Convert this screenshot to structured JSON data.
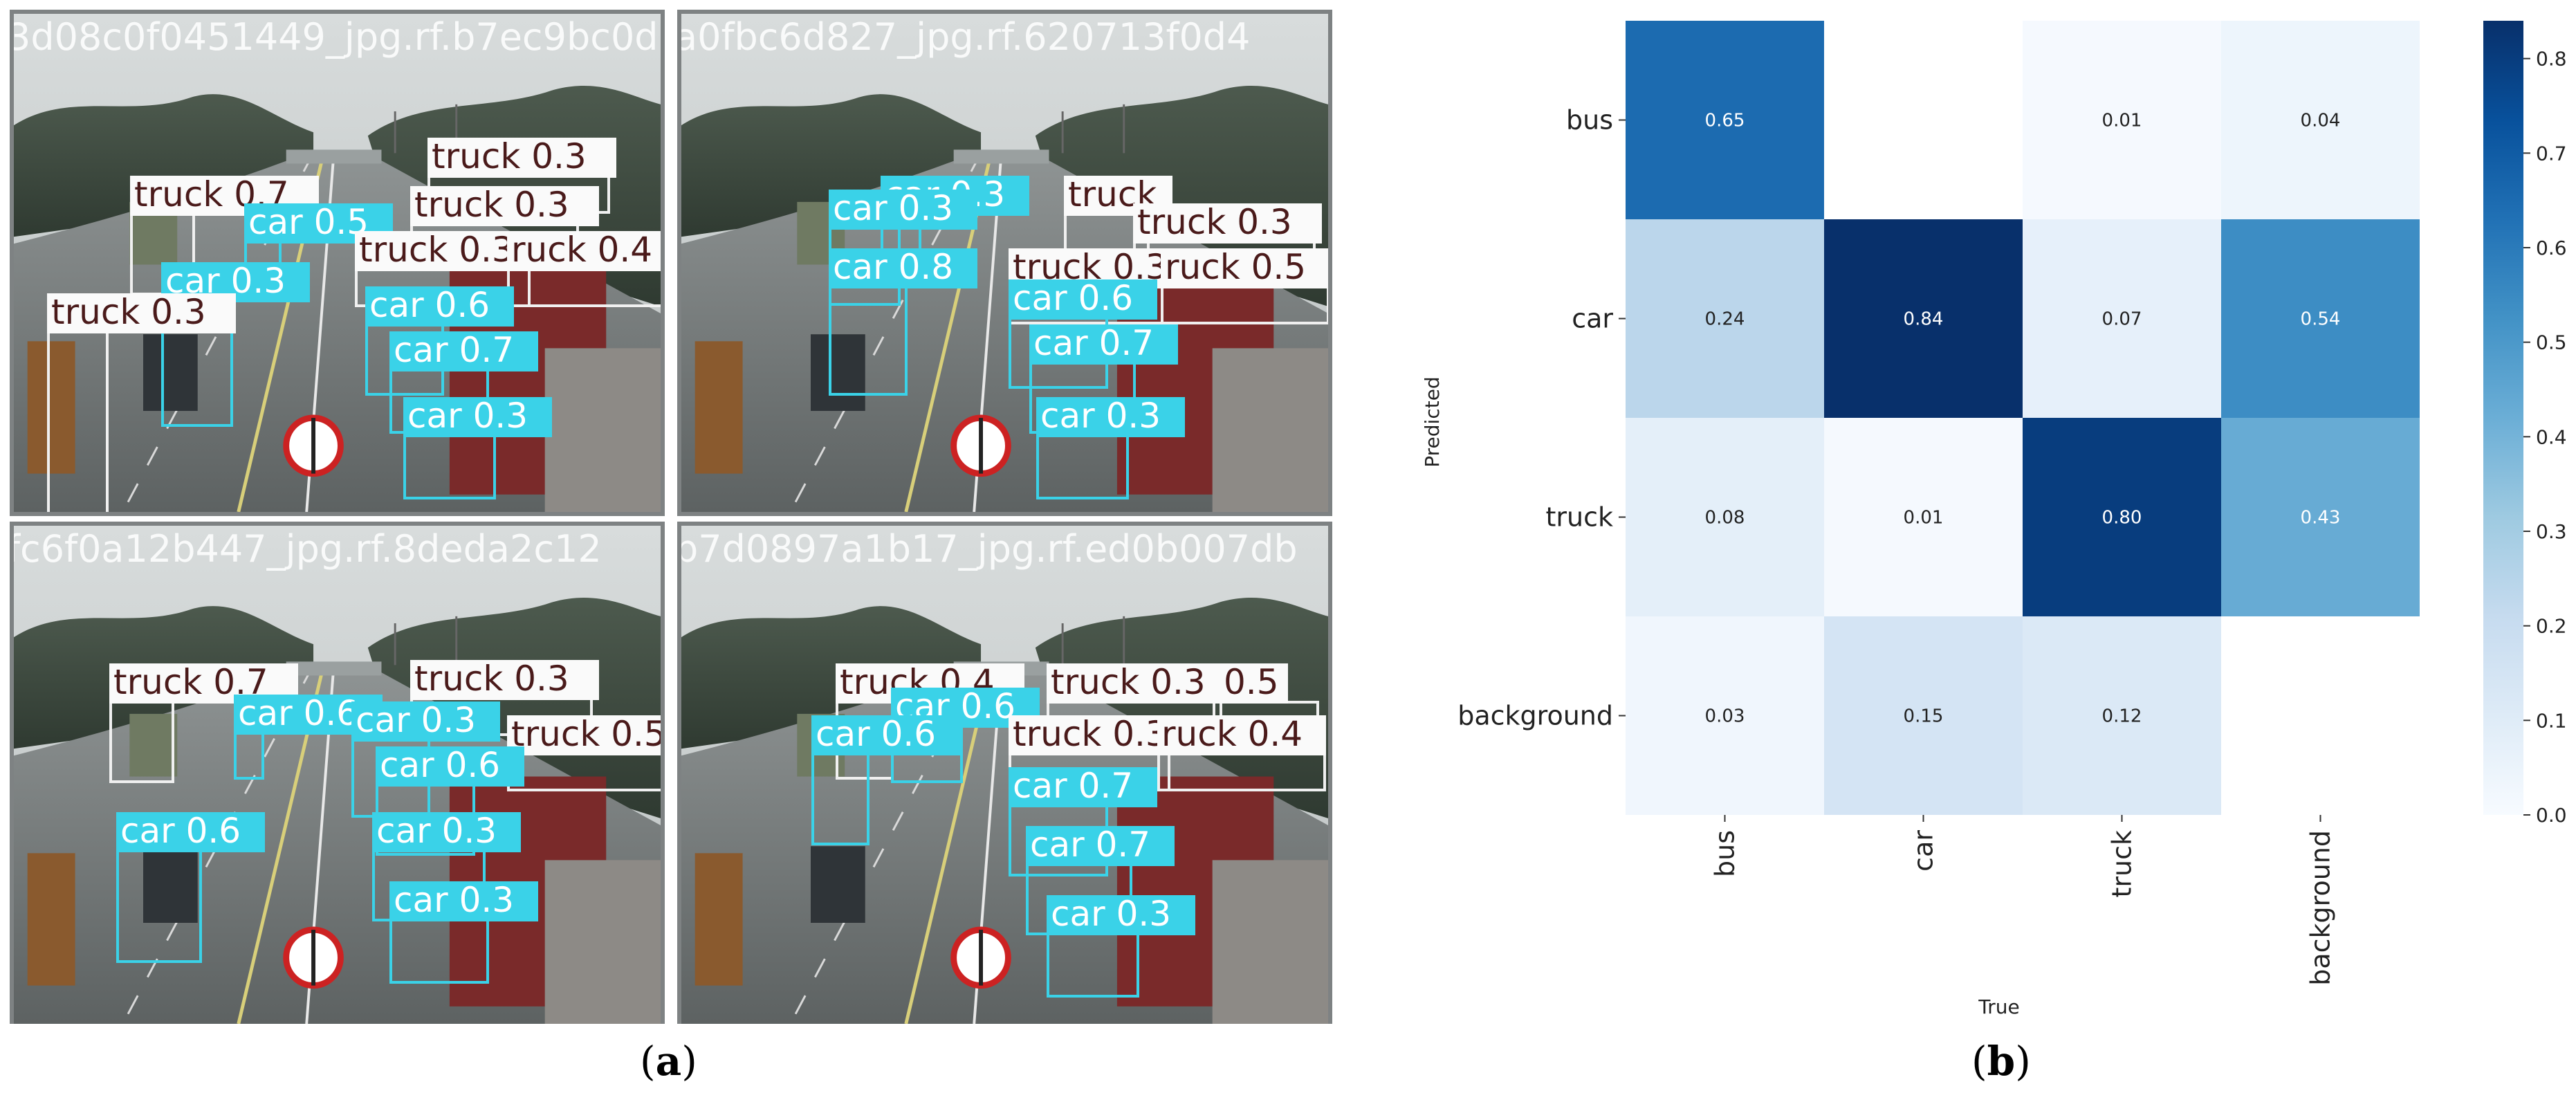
{
  "panel_a": {
    "label": "a",
    "images": [
      {
        "title": "3d08c0f0451449_jpg.rf.b7ec9bc0d",
        "detections": [
          {
            "label": "truck 0.7",
            "cls": "truck"
          },
          {
            "label": "car 0.5",
            "cls": "car"
          },
          {
            "label": "truck 0.3",
            "cls": "truck"
          },
          {
            "label": "truck 0.3",
            "cls": "truck"
          },
          {
            "label": "truck 0.3",
            "cls": "truck"
          },
          {
            "label": "ruck 0.4",
            "cls": "truck"
          },
          {
            "label": "car 0.3",
            "cls": "car"
          },
          {
            "label": "truck 0.3",
            "cls": "truck"
          },
          {
            "label": "car 0.6",
            "cls": "car"
          },
          {
            "label": "car 0.7",
            "cls": "car"
          },
          {
            "label": "car 0.3",
            "cls": "car"
          }
        ]
      },
      {
        "title": "a0fbc6d827_jpg.rf.620713f0d4",
        "detections": [
          {
            "label": "car 0.3",
            "cls": "car"
          },
          {
            "label": "car 0.3",
            "cls": "car"
          },
          {
            "label": "truck",
            "cls": "truck"
          },
          {
            "label": "truck 0.3",
            "cls": "truck"
          },
          {
            "label": "car 0.8",
            "cls": "car"
          },
          {
            "label": "truck 0.3",
            "cls": "truck"
          },
          {
            "label": "ruck 0.5",
            "cls": "truck"
          },
          {
            "label": "car 0.6",
            "cls": "car"
          },
          {
            "label": "car 0.7",
            "cls": "car"
          },
          {
            "label": "car 0.3",
            "cls": "car"
          }
        ]
      },
      {
        "title": "fc6f0a12b447_jpg.rf.8deda2c12",
        "detections": [
          {
            "label": "truck 0.7",
            "cls": "truck"
          },
          {
            "label": "car 0.6",
            "cls": "car"
          },
          {
            "label": "truck 0.3",
            "cls": "truck"
          },
          {
            "label": "car 0.3",
            "cls": "car"
          },
          {
            "label": "truck 0.5",
            "cls": "truck"
          },
          {
            "label": "car 0.6",
            "cls": "car"
          },
          {
            "label": "car 0.6",
            "cls": "car"
          },
          {
            "label": "car 0.3",
            "cls": "car"
          },
          {
            "label": "car 0.3",
            "cls": "car"
          }
        ]
      },
      {
        "title": "b7d0897a1b17_jpg.rf.ed0b007db",
        "detections": [
          {
            "label": "truck 0.4",
            "cls": "truck"
          },
          {
            "label": "car 0.6",
            "cls": "car"
          },
          {
            "label": "car 0.6",
            "cls": "car"
          },
          {
            "label": "truck 0.3",
            "cls": "truck"
          },
          {
            "label": "0.5",
            "cls": "truck"
          },
          {
            "label": "truck 0.3",
            "cls": "truck"
          },
          {
            "label": "ruck 0.4",
            "cls": "truck"
          },
          {
            "label": "car 0.7",
            "cls": "car"
          },
          {
            "label": "car 0.7",
            "cls": "car"
          },
          {
            "label": "car 0.3",
            "cls": "car"
          }
        ]
      }
    ]
  },
  "panel_b": {
    "label": "b"
  },
  "colors": {
    "car_box": "#3ad2e8",
    "truck_label_bg": "#fafafa",
    "truck_text": "#4a1a1a",
    "car_text": "#ffffff",
    "colormap_low": "#f7fbff",
    "colormap_high": "#08306b"
  },
  "chart_data": {
    "type": "heatmap",
    "title": "",
    "xlabel": "True",
    "ylabel": "Predicted",
    "x_categories": [
      "bus",
      "car",
      "truck",
      "background"
    ],
    "y_categories": [
      "bus",
      "car",
      "truck",
      "background"
    ],
    "values": [
      [
        0.65,
        null,
        0.01,
        0.04
      ],
      [
        0.24,
        0.84,
        0.07,
        0.54
      ],
      [
        0.08,
        0.01,
        0.8,
        0.43
      ],
      [
        0.03,
        0.15,
        0.12,
        null
      ]
    ],
    "value_labels": [
      [
        "0.65",
        "",
        "0.01",
        "0.04"
      ],
      [
        "0.24",
        "0.84",
        "0.07",
        "0.54"
      ],
      [
        "0.08",
        "0.01",
        "0.80",
        "0.43"
      ],
      [
        "0.03",
        "0.15",
        "0.12",
        ""
      ]
    ],
    "colorbar": {
      "range": [
        0,
        0.84
      ],
      "ticks": [
        0.0,
        0.1,
        0.2,
        0.3,
        0.4,
        0.5,
        0.6,
        0.7,
        0.8
      ],
      "tick_labels": [
        "0.0",
        "0.1",
        "0.2",
        "0.3",
        "0.4",
        "0.5",
        "0.6",
        "0.7",
        "0.8"
      ],
      "colormap": "Blues"
    },
    "grid": false,
    "legend": "colorbar-right"
  }
}
